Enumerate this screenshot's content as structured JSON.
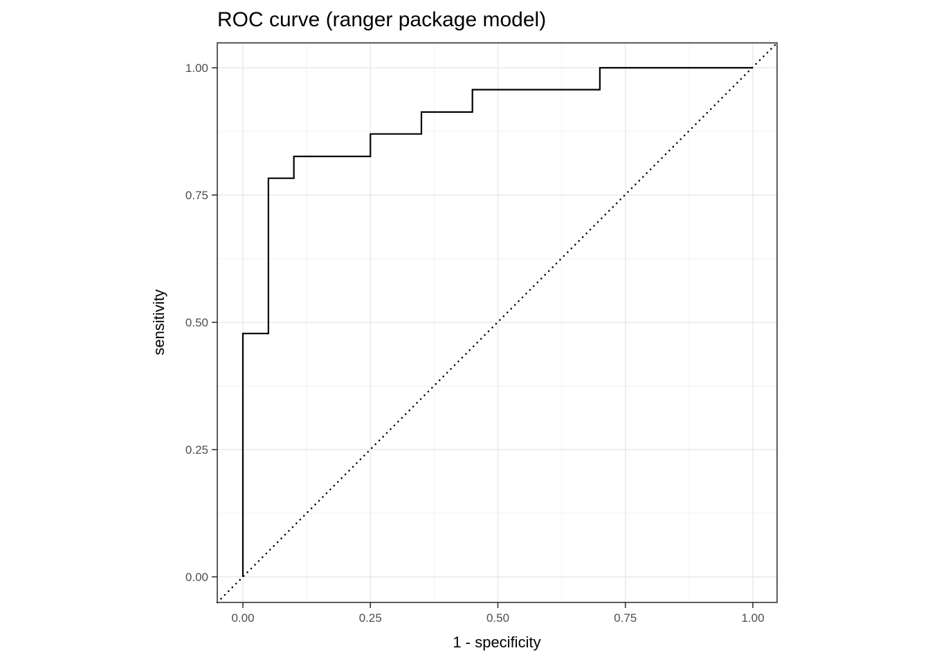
{
  "figure": {
    "background_color": "#ffffff",
    "panel_background_color": "#ffffff",
    "panel_border_color": "#333333",
    "grid_major_color": "#e8e8e8",
    "grid_minor_color": "#f2f2f2",
    "tick_mark_color": "#333333",
    "tick_label_color": "#4d4d4d",
    "curve_color": "#000000",
    "reference_line_color": "#000000"
  },
  "chart_data": {
    "type": "line",
    "subtype": "roc-step-curve",
    "title": "ROC curve (ranger package model)",
    "xlabel": "1 - specificity",
    "ylabel": "sensitivity",
    "xlim": [
      -0.05,
      1.05
    ],
    "ylim": [
      -0.05,
      1.05
    ],
    "grid": "major+minor",
    "legend": "none",
    "x_ticks": {
      "values": [
        0.0,
        0.25,
        0.5,
        0.75,
        1.0
      ],
      "labels": [
        "0.00",
        "0.25",
        "0.50",
        "0.75",
        "1.00"
      ]
    },
    "y_ticks": {
      "values": [
        0.0,
        0.25,
        0.5,
        0.75,
        1.0
      ],
      "labels": [
        "0.00",
        "0.25",
        "0.50",
        "0.75",
        "1.00"
      ]
    },
    "x_minor_ticks": [
      0.125,
      0.375,
      0.625,
      0.875
    ],
    "y_minor_ticks": [
      0.125,
      0.375,
      0.625,
      0.875
    ],
    "series": [
      {
        "name": "ROC step curve",
        "type": "step",
        "color": "#000000",
        "line_width": 2.2,
        "points": [
          [
            0.0,
            0.0
          ],
          [
            0.0,
            0.478
          ],
          [
            0.05,
            0.478
          ],
          [
            0.05,
            0.783
          ],
          [
            0.1,
            0.783
          ],
          [
            0.1,
            0.826
          ],
          [
            0.25,
            0.826
          ],
          [
            0.25,
            0.87
          ],
          [
            0.35,
            0.87
          ],
          [
            0.35,
            0.913
          ],
          [
            0.45,
            0.913
          ],
          [
            0.45,
            0.957
          ],
          [
            0.7,
            0.957
          ],
          [
            0.7,
            1.0
          ],
          [
            1.0,
            1.0
          ]
        ]
      },
      {
        "name": "chance diagonal",
        "type": "reference-line",
        "line_style": "dotted",
        "color": "#000000",
        "from": [
          0,
          0
        ],
        "to": [
          1,
          1
        ],
        "spans_full_panel": true
      }
    ]
  }
}
